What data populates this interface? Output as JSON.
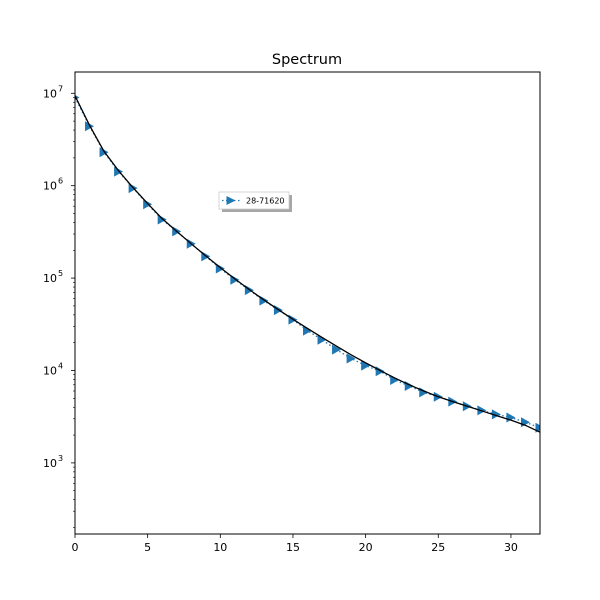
{
  "chart_data": {
    "type": "line",
    "title": "Spectrum",
    "xlabel": "",
    "ylabel": "",
    "xlim": [
      0,
      32
    ],
    "ylim": [
      170,
      17000000
    ],
    "yscale": "log",
    "grid": false,
    "legend": {
      "position": "upper-center",
      "entries": [
        "28-71620"
      ]
    },
    "x_ticks": [
      0,
      5,
      10,
      15,
      20,
      25,
      30
    ],
    "x_tick_labels": [
      "0",
      "5",
      "10",
      "15",
      "20",
      "25",
      "30"
    ],
    "y_ticks": [
      1000,
      10000,
      100000,
      1000000,
      10000000
    ],
    "y_tick_labels": [
      {
        "base": "10",
        "exp": "3"
      },
      {
        "base": "10",
        "exp": "4"
      },
      {
        "base": "10",
        "exp": "5"
      },
      {
        "base": "10",
        "exp": "6"
      },
      {
        "base": "10",
        "exp": "7"
      }
    ],
    "series": [
      {
        "name": "28-71620",
        "style": "dotted-marker",
        "marker": "triangle-right",
        "color": "#1f77b4",
        "x": [
          0,
          1,
          2,
          3,
          4,
          5,
          6,
          7,
          8,
          9,
          10,
          11,
          12,
          13,
          14,
          15,
          16,
          17,
          18,
          19,
          20,
          21,
          22,
          23,
          24,
          25,
          26,
          27,
          28,
          29,
          30,
          31,
          32
        ],
        "y": [
          9000000,
          4400000,
          2300000,
          1420000,
          940000,
          630000,
          430000,
          320000,
          235000,
          172000,
          127000,
          96000,
          74000,
          57000,
          45000,
          35500,
          27000,
          21500,
          16800,
          13500,
          11300,
          9800,
          7900,
          6800,
          5800,
          5200,
          4600,
          4100,
          3700,
          3350,
          3100,
          2750,
          2400
        ]
      },
      {
        "name": "",
        "style": "solid",
        "color": "#000000",
        "x": [
          0,
          1,
          2,
          3,
          4,
          5,
          6,
          7,
          8,
          9,
          10,
          11,
          12,
          13,
          14,
          15,
          16,
          17,
          18,
          19,
          20,
          21,
          22,
          23,
          24,
          25,
          26,
          27,
          28,
          29,
          30,
          31,
          32
        ],
        "y": [
          9400000,
          4500000,
          2350000,
          1450000,
          950000,
          640000,
          440000,
          320000,
          235000,
          174000,
          130000,
          98000,
          75000,
          58000,
          45500,
          35800,
          28500,
          22800,
          18300,
          14800,
          12100,
          10000,
          8300,
          7000,
          6000,
          5200,
          4600,
          4100,
          3650,
          3250,
          2900,
          2550,
          2150
        ]
      }
    ]
  },
  "colors": {
    "series_blue": "#1f77b4",
    "fit_line": "#000000",
    "axes": "#000000"
  }
}
